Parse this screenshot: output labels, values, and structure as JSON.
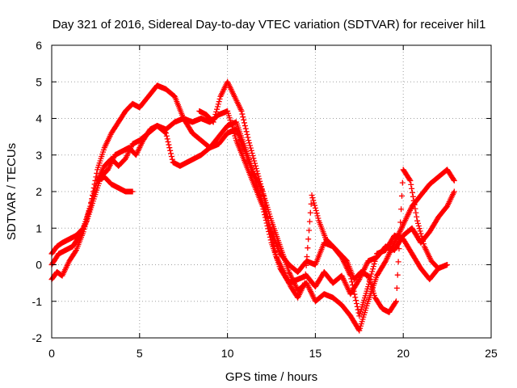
{
  "chart_data": {
    "type": "scatter",
    "title": "Day 321 of 2016, Sidereal Day-to-day VTEC variation (SDTVAR) for receiver hil1",
    "xlabel": "GPS time / hours",
    "ylabel": "SDTVAR / TECUs",
    "xlim": [
      0,
      25
    ],
    "ylim": [
      -2,
      6
    ],
    "xticks": [
      "0",
      "5",
      "10",
      "15",
      "20",
      "25"
    ],
    "yticks": [
      "-2",
      "-1",
      "0",
      "1",
      "2",
      "3",
      "4",
      "5",
      "6"
    ],
    "grid": true,
    "marker": "plus",
    "colors": {
      "series": "#ff0000",
      "grid": "#a0a0a0",
      "axes": "#000000"
    },
    "series": [
      {
        "values": [
          [
            0.0,
            -0.4
          ],
          [
            0.3,
            -0.2
          ],
          [
            0.6,
            -0.3
          ],
          [
            1.0,
            0.1
          ],
          [
            1.4,
            0.4
          ],
          [
            1.8,
            0.9
          ],
          [
            2.2,
            1.6
          ],
          [
            2.6,
            2.3
          ],
          [
            3.0,
            2.7
          ],
          [
            3.4,
            2.9
          ],
          [
            3.8,
            2.7
          ],
          [
            4.2,
            2.9
          ],
          [
            4.6,
            3.3
          ],
          [
            5.0,
            3.4
          ],
          [
            5.5,
            3.6
          ],
          [
            6.0,
            3.8
          ],
          [
            6.5,
            3.7
          ],
          [
            7.0,
            3.9
          ],
          [
            7.5,
            4.0
          ],
          [
            8.0,
            3.9
          ],
          [
            8.5,
            4.0
          ],
          [
            9.0,
            3.9
          ],
          [
            9.5,
            4.1
          ],
          [
            10.0,
            4.2
          ],
          [
            10.5,
            3.4
          ],
          [
            11.0,
            2.8
          ],
          [
            11.5,
            2.2
          ],
          [
            12.0,
            1.6
          ],
          [
            12.5,
            0.6
          ],
          [
            13.0,
            -0.1
          ],
          [
            13.5,
            -0.5
          ],
          [
            14.0,
            -0.4
          ],
          [
            14.5,
            -0.3
          ],
          [
            15.0,
            -0.6
          ],
          [
            15.5,
            -0.2
          ],
          [
            16.0,
            -0.5
          ],
          [
            16.5,
            -0.3
          ],
          [
            17.0,
            -0.8
          ],
          [
            17.5,
            -0.4
          ],
          [
            18.0,
            0.1
          ],
          [
            18.5,
            0.2
          ],
          [
            19.0,
            0.5
          ],
          [
            19.5,
            0.4
          ],
          [
            20.0,
            0.8
          ],
          [
            20.5,
            1.0
          ],
          [
            21.0,
            0.6
          ],
          [
            21.5,
            0.9
          ],
          [
            22.0,
            1.3
          ],
          [
            22.5,
            1.6
          ],
          [
            22.9,
            2.0
          ]
        ]
      },
      {
        "values": [
          [
            0.0,
            0.3
          ],
          [
            0.3,
            0.5
          ],
          [
            0.6,
            0.6
          ],
          [
            1.0,
            0.7
          ],
          [
            1.4,
            0.8
          ],
          [
            1.8,
            1.0
          ],
          [
            2.2,
            1.6
          ],
          [
            2.6,
            2.6
          ],
          [
            3.0,
            3.2
          ],
          [
            3.4,
            3.6
          ],
          [
            3.8,
            3.9
          ],
          [
            4.2,
            4.2
          ],
          [
            4.6,
            4.4
          ],
          [
            5.0,
            4.3
          ],
          [
            5.5,
            4.6
          ],
          [
            6.0,
            4.9
          ],
          [
            6.5,
            4.8
          ],
          [
            7.0,
            4.6
          ],
          [
            7.5,
            4.0
          ],
          [
            8.0,
            3.6
          ],
          [
            8.5,
            3.4
          ],
          [
            9.0,
            3.2
          ],
          [
            9.5,
            3.3
          ],
          [
            10.0,
            3.6
          ],
          [
            10.5,
            3.7
          ],
          [
            11.0,
            3.1
          ],
          [
            11.5,
            2.4
          ],
          [
            12.0,
            1.7
          ],
          [
            12.5,
            0.9
          ],
          [
            13.0,
            0.3
          ],
          [
            13.5,
            0.0
          ],
          [
            14.0,
            -0.2
          ],
          [
            14.5,
            0.1
          ],
          [
            15.0,
            0.0
          ],
          [
            15.5,
            0.6
          ],
          [
            16.0,
            0.5
          ],
          [
            16.5,
            0.2
          ],
          [
            17.0,
            -0.3
          ],
          [
            17.5,
            -1.4
          ],
          [
            18.0,
            -0.6
          ],
          [
            18.5,
            0.3
          ],
          [
            19.0,
            0.4
          ],
          [
            19.5,
            0.8
          ],
          [
            20.0,
            0.7
          ],
          [
            20.5,
            0.3
          ],
          [
            21.0,
            -0.1
          ],
          [
            21.5,
            -0.4
          ],
          [
            22.0,
            -0.1
          ],
          [
            22.5,
            0.0
          ]
        ]
      },
      {
        "values": [
          [
            0.0,
            0.0
          ],
          [
            0.4,
            0.3
          ],
          [
            0.8,
            0.4
          ],
          [
            1.2,
            0.5
          ],
          [
            1.6,
            0.8
          ],
          [
            2.0,
            1.2
          ],
          [
            2.4,
            1.8
          ],
          [
            2.8,
            2.4
          ],
          [
            3.2,
            2.6
          ],
          [
            3.6,
            3.0
          ],
          [
            4.0,
            3.1
          ],
          [
            4.4,
            3.2
          ],
          [
            4.8,
            3.0
          ],
          [
            5.2,
            3.4
          ],
          [
            5.6,
            3.7
          ],
          [
            6.0,
            3.8
          ],
          [
            6.5,
            3.6
          ],
          [
            6.9,
            2.8
          ],
          [
            7.3,
            2.7
          ],
          [
            7.7,
            2.8
          ],
          [
            8.1,
            2.9
          ],
          [
            8.5,
            3.0
          ],
          [
            9.0,
            3.2
          ],
          [
            9.5,
            3.5
          ],
          [
            10.0,
            3.8
          ],
          [
            10.5,
            3.9
          ],
          [
            11.0,
            3.2
          ],
          [
            11.5,
            2.5
          ],
          [
            12.0,
            2.0
          ],
          [
            12.5,
            1.2
          ],
          [
            13.0,
            0.5
          ],
          [
            13.5,
            -0.2
          ],
          [
            14.0,
            -0.7
          ],
          [
            14.5,
            -0.5
          ],
          [
            15.0,
            -1.0
          ],
          [
            15.5,
            -0.8
          ],
          [
            16.0,
            -0.9
          ],
          [
            16.5,
            -1.1
          ],
          [
            17.0,
            -1.4
          ],
          [
            17.5,
            -1.8
          ],
          [
            18.0,
            -1.0
          ],
          [
            18.5,
            -0.3
          ],
          [
            19.0,
            0.1
          ],
          [
            19.5,
            0.6
          ],
          [
            20.0,
            1.1
          ],
          [
            20.5,
            1.6
          ],
          [
            21.0,
            1.9
          ],
          [
            21.5,
            2.2
          ],
          [
            22.0,
            2.4
          ],
          [
            22.5,
            2.6
          ],
          [
            22.9,
            2.3
          ]
        ]
      },
      {
        "values": [
          [
            2.6,
            2.3
          ],
          [
            3.0,
            2.4
          ],
          [
            3.4,
            2.2
          ],
          [
            3.8,
            2.1
          ],
          [
            4.2,
            2.0
          ],
          [
            4.6,
            2.0
          ],
          [
            8.4,
            4.2
          ],
          [
            8.8,
            4.1
          ],
          [
            9.2,
            3.9
          ],
          [
            9.6,
            4.6
          ],
          [
            10.0,
            5.0
          ],
          [
            10.4,
            4.6
          ],
          [
            10.8,
            4.2
          ],
          [
            11.2,
            3.4
          ],
          [
            11.6,
            2.7
          ],
          [
            12.0,
            2.0
          ],
          [
            12.4,
            1.0
          ],
          [
            12.8,
            0.2
          ],
          [
            13.2,
            -0.2
          ],
          [
            13.6,
            -0.6
          ],
          [
            14.0,
            -0.9
          ],
          [
            14.4,
            -0.5
          ],
          [
            14.8,
            1.9
          ],
          [
            15.2,
            1.2
          ],
          [
            15.6,
            0.7
          ],
          [
            16.0,
            0.5
          ],
          [
            16.4,
            0.3
          ],
          [
            16.8,
            0.1
          ],
          [
            17.2,
            -0.4
          ],
          [
            17.6,
            -0.2
          ],
          [
            18.0,
            -0.3
          ],
          [
            18.4,
            -0.9
          ],
          [
            18.8,
            -1.2
          ],
          [
            19.2,
            -1.3
          ],
          [
            19.6,
            -1.0
          ],
          [
            20.0,
            2.6
          ],
          [
            20.4,
            2.3
          ],
          [
            20.8,
            1.2
          ],
          [
            21.2,
            0.5
          ],
          [
            21.6,
            0.1
          ],
          [
            22.0,
            -0.1
          ]
        ]
      }
    ]
  }
}
